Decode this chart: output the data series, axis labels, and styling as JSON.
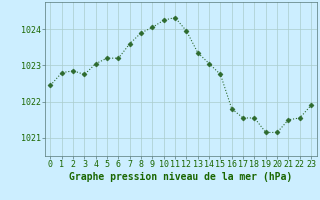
{
  "x": [
    0,
    1,
    2,
    3,
    4,
    5,
    6,
    7,
    8,
    9,
    10,
    11,
    12,
    13,
    14,
    15,
    16,
    17,
    18,
    19,
    20,
    21,
    22,
    23
  ],
  "y": [
    1022.45,
    1022.8,
    1022.85,
    1022.75,
    1023.05,
    1023.2,
    1023.2,
    1023.6,
    1023.9,
    1024.05,
    1024.25,
    1024.32,
    1023.95,
    1023.35,
    1023.05,
    1022.75,
    1021.8,
    1021.55,
    1021.55,
    1021.15,
    1021.15,
    1021.5,
    1021.55,
    1021.9
  ],
  "line_color": "#2d6a2d",
  "marker_color": "#2d6a2d",
  "bg_color": "#cceeff",
  "grid_color": "#aacccc",
  "xlabel": "Graphe pression niveau de la mer (hPa)",
  "ylim_min": 1020.5,
  "ylim_max": 1024.75,
  "yticks": [
    1021,
    1022,
    1023,
    1024
  ],
  "xticks": [
    0,
    1,
    2,
    3,
    4,
    5,
    6,
    7,
    8,
    9,
    10,
    11,
    12,
    13,
    14,
    15,
    16,
    17,
    18,
    19,
    20,
    21,
    22,
    23
  ],
  "tick_label_color": "#1a6600",
  "xlabel_color": "#1a6600",
  "xlabel_fontsize": 7.0,
  "tick_fontsize": 6.0,
  "marker_size": 2.5,
  "linewidth": 0.8
}
